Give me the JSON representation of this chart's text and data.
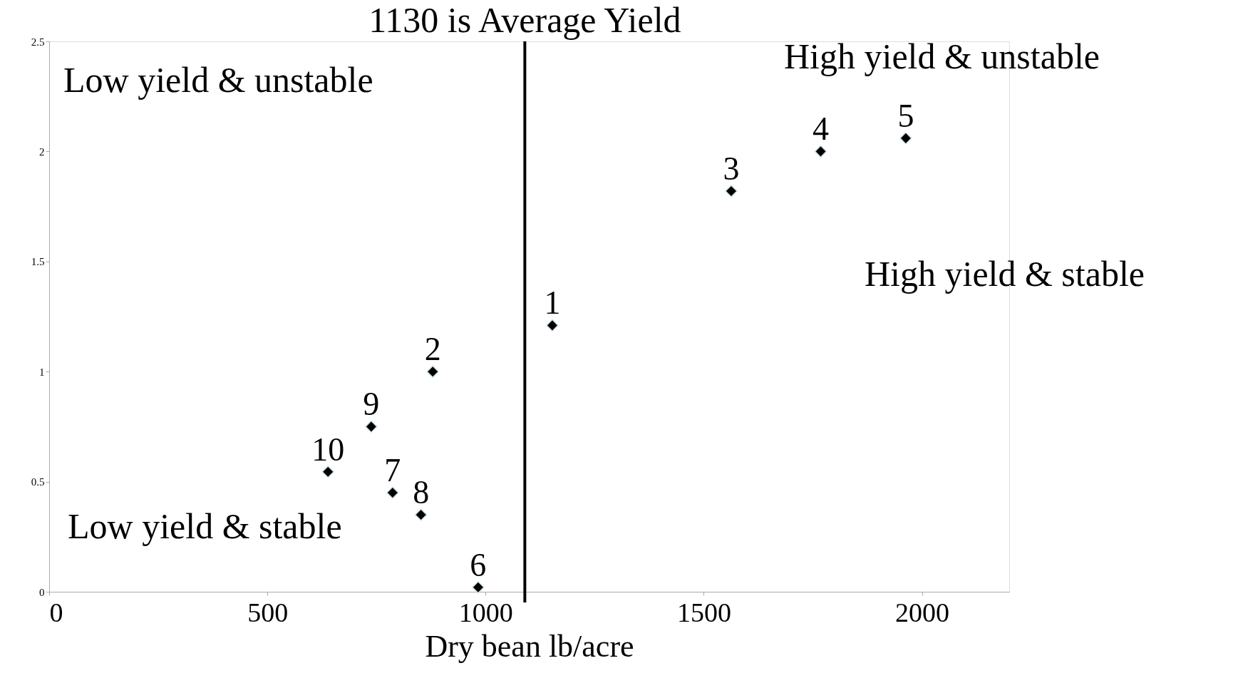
{
  "chart_data": {
    "type": "scatter",
    "xlabel": "Dry bean  lb/acre",
    "x": [
      1153,
      879,
      1563,
      1768,
      1963,
      983,
      787,
      852,
      738,
      639
    ],
    "series": [
      {
        "color": "#000000",
        "values": [
          1.21,
          1.0,
          1.82,
          2.0,
          2.06,
          0.02,
          0.45,
          0.35,
          0.75,
          0.545
        ]
      }
    ],
    "xlim": [
      0,
      2200
    ],
    "xticks": [
      0,
      500,
      1000,
      1500,
      2000
    ],
    "ylim": [
      0,
      2.5
    ],
    "yticks": [
      0,
      0.5,
      1,
      1.5,
      2,
      2.5
    ],
    "ref_lines": [
      {
        "axis": "x",
        "value": 1090,
        "label": "1130 is Average Yield",
        "color": "#000000"
      }
    ],
    "annotations": [
      "Low yield & unstable",
      "High yield & unstable",
      "High yield & stable",
      "Low yield & stable",
      {
        "text": "1",
        "x": 1153,
        "y": 1.21
      },
      {
        "text": "2",
        "x": 879,
        "y": 1.0
      },
      {
        "text": "3",
        "x": 1563,
        "y": 1.82
      },
      {
        "text": "4",
        "x": 1768,
        "y": 2.0
      },
      {
        "text": "5",
        "x": 1963,
        "y": 2.06
      },
      {
        "text": "6",
        "x": 983,
        "y": 0.02
      },
      {
        "text": "7",
        "x": 787,
        "y": 0.45
      },
      {
        "text": "8",
        "x": 852,
        "y": 0.35
      },
      {
        "text": "9",
        "x": 738,
        "y": 0.75
      },
      {
        "text": "10",
        "x": 639,
        "y": 0.545
      }
    ],
    "marker": "diamond",
    "grid": false
  }
}
